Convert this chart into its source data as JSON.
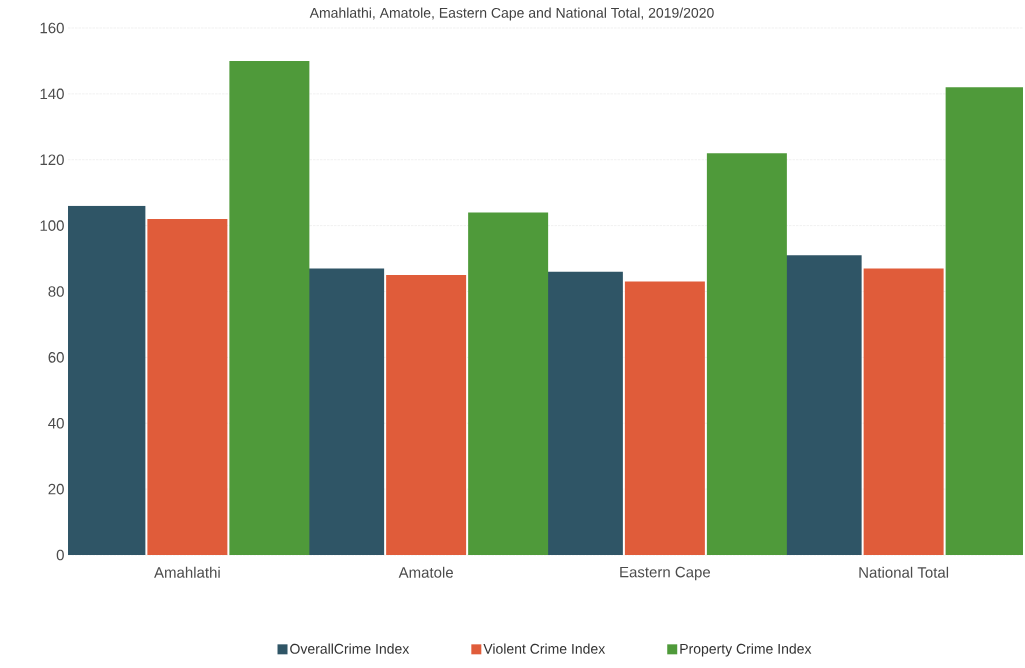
{
  "chart_data": {
    "type": "bar",
    "title": "Amahlathi, Amatole, Eastern Cape and National Total, 2019/2020",
    "categories": [
      "Amahlathi",
      "Amatole",
      "Eastern Cape",
      "National Total"
    ],
    "series": [
      {
        "name": "OverallCrime Index",
        "color": "#2f5566",
        "values": [
          106,
          87,
          86,
          91
        ]
      },
      {
        "name": "Violent Crime Index",
        "color": "#e05c3a",
        "values": [
          102,
          85,
          83,
          87
        ]
      },
      {
        "name": "Property Crime Index",
        "color": "#4f9a3a",
        "values": [
          150,
          104,
          122,
          142
        ]
      }
    ],
    "ylim": [
      0,
      160
    ],
    "yticks": [
      0,
      20,
      40,
      60,
      80,
      100,
      120,
      140,
      160
    ],
    "grid": "y",
    "legend": "bottom"
  }
}
